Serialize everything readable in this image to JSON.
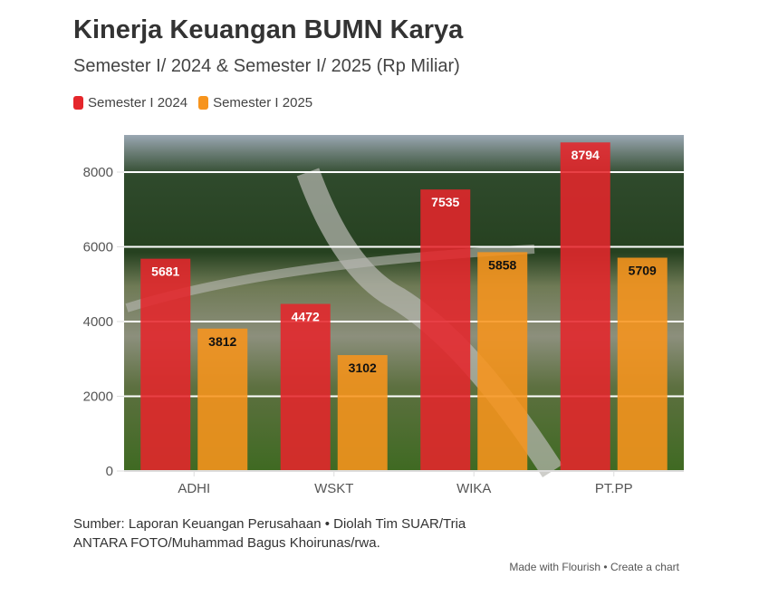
{
  "title": "Kinerja Keuangan BUMN Karya",
  "subtitle": "Semester I/ 2024 & Semester I/ 2025 (Rp Miliar)",
  "footer": {
    "source": "Sumber: Laporan Keuangan Perusahaan • Diolah Tim SUAR/Tria",
    "photo": "ANTARA FOTO/Muhammad Bagus Khoirunas/rwa.",
    "credit": "Made with Flourish • Create a chart"
  },
  "chart_data": {
    "type": "bar",
    "categories": [
      "ADHI",
      "WSKT",
      "WIKA",
      "PT.PP"
    ],
    "series": [
      {
        "name": "Semester I 2024",
        "color": "#e5262b",
        "values": [
          5681,
          4472,
          7535,
          8794
        ]
      },
      {
        "name": "Semester I 2025",
        "color": "#f7941d",
        "values": [
          3812,
          3102,
          5858,
          5709
        ]
      }
    ],
    "yticks": [
      0,
      2000,
      4000,
      6000,
      8000
    ],
    "ylim": [
      0,
      9000
    ],
    "grid": true,
    "legend": "top-left",
    "xlabel": "",
    "ylabel": ""
  }
}
